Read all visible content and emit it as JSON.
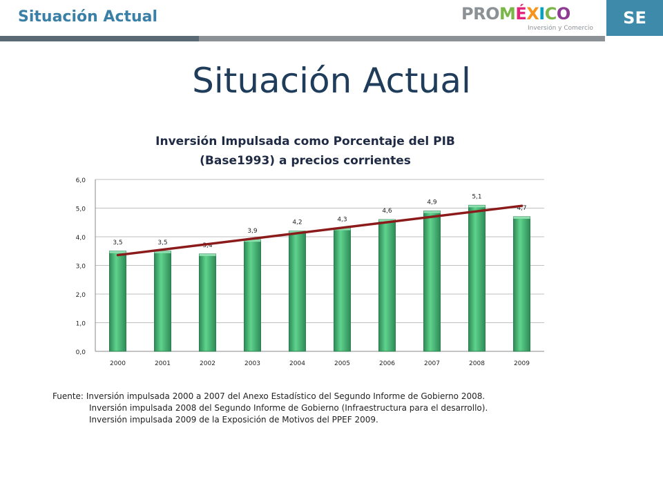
{
  "header": {
    "title": "Situación Actual",
    "se_label": "SE",
    "logo": {
      "parts": [
        {
          "text": "PRO",
          "color": "#8c9196"
        },
        {
          "text": "M",
          "color": "#7ab648"
        },
        {
          "text": "É",
          "color": "#e2237a"
        },
        {
          "text": "X",
          "color": "#f7941d"
        },
        {
          "text": "I",
          "color": "#00a3c4"
        },
        {
          "text": "C",
          "color": "#7ab648"
        },
        {
          "text": "O",
          "color": "#8e3b93"
        }
      ],
      "subtitle": "Inversión y Comercio"
    }
  },
  "main_title": "Situación Actual",
  "chart_data": {
    "type": "bar",
    "title_lines": [
      "Inversión Impulsada como Porcentaje del PIB",
      "(Base1993) a precios corrientes"
    ],
    "categories": [
      "2000",
      "2001",
      "2002",
      "2003",
      "2004",
      "2005",
      "2006",
      "2007",
      "2008",
      "2009"
    ],
    "values": [
      3.5,
      3.5,
      3.4,
      3.9,
      4.2,
      4.3,
      4.6,
      4.9,
      5.1,
      4.7
    ],
    "data_labels": [
      "3,5",
      "3,5",
      "3,4",
      "3,9",
      "4,2",
      "4,3",
      "4,6",
      "4,9",
      "5,1",
      "4,7"
    ],
    "y_ticks": [
      "0,0",
      "1,0",
      "2,0",
      "3,0",
      "4,0",
      "5,0",
      "6,0"
    ],
    "ylim": [
      0,
      6
    ],
    "trendline": {
      "from": 3.36,
      "to": 5.08,
      "color": "#8b1a1a"
    },
    "bar_color": "#3cb371",
    "grid": true,
    "legend": false
  },
  "source": {
    "label": "Fuente:",
    "lines": [
      "Inversión impulsada 2000 a 2007 del Anexo Estadístico del Segundo Informe de Gobierno 2008.",
      "Inversión impulsada 2008 del Segundo Informe de Gobierno (Infraestructura para el desarrollo).",
      "Inversión impulsada 2009 de la Exposición de Motivos del PPEF 2009."
    ]
  }
}
